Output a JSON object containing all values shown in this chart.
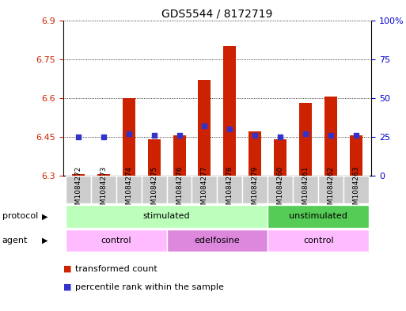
{
  "title": "GDS5544 / 8172719",
  "samples": [
    "GSM1084272",
    "GSM1084273",
    "GSM1084274",
    "GSM1084275",
    "GSM1084276",
    "GSM1084277",
    "GSM1084278",
    "GSM1084279",
    "GSM1084260",
    "GSM1084261",
    "GSM1084262",
    "GSM1084263"
  ],
  "bar_bottom": 6.3,
  "bar_top": [
    6.305,
    6.305,
    6.6,
    6.44,
    6.455,
    6.67,
    6.8,
    6.47,
    6.44,
    6.58,
    6.605,
    6.455
  ],
  "percentile": [
    25,
    25,
    27,
    26,
    26,
    32,
    30,
    26,
    25,
    27,
    26,
    26
  ],
  "ylim_left": [
    6.3,
    6.9
  ],
  "ylim_right": [
    0,
    100
  ],
  "yticks_left": [
    6.3,
    6.45,
    6.6,
    6.75,
    6.9
  ],
  "yticks_right": [
    0,
    25,
    50,
    75,
    100
  ],
  "ytick_labels_right": [
    "0",
    "25",
    "50",
    "75",
    "100%"
  ],
  "bar_color": "#cc2200",
  "blue_color": "#3333cc",
  "protocol_groups": [
    {
      "label": "stimulated",
      "start": 0,
      "end": 8,
      "color": "#bbffbb"
    },
    {
      "label": "unstimulated",
      "start": 8,
      "end": 12,
      "color": "#55cc55"
    }
  ],
  "agent_groups": [
    {
      "label": "control",
      "start": 0,
      "end": 4,
      "color": "#ffbbff"
    },
    {
      "label": "edelfosine",
      "start": 4,
      "end": 8,
      "color": "#dd88dd"
    },
    {
      "label": "control",
      "start": 8,
      "end": 12,
      "color": "#ffbbff"
    }
  ],
  "legend_items": [
    {
      "label": "transformed count",
      "color": "#cc2200"
    },
    {
      "label": "percentile rank within the sample",
      "color": "#3333cc"
    }
  ],
  "bg_color": "#ffffff",
  "left_tick_color": "#cc2200",
  "right_tick_color": "#0000cc",
  "bar_width": 0.5,
  "dot_size": 22,
  "title_fontsize": 10,
  "tick_fontsize": 8,
  "label_fontsize": 8,
  "sample_label_fontsize": 6.5,
  "cell_color": "#cccccc",
  "cell_edge_color": "#ffffff"
}
